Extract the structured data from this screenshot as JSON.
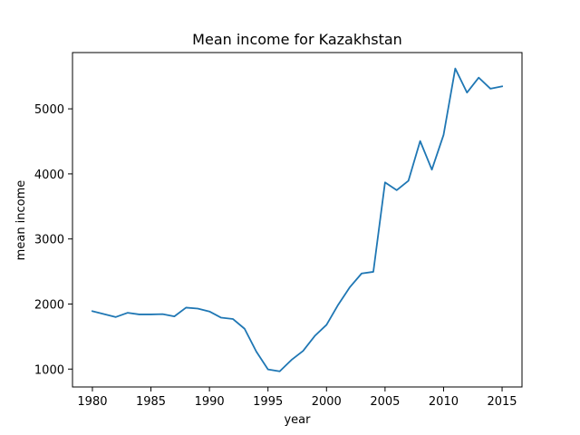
{
  "chart_data": {
    "type": "line",
    "title": "Mean income for Kazakhstan",
    "xlabel": "year",
    "ylabel": "mean income",
    "xlim": [
      1978.3,
      2016.7
    ],
    "ylim": [
      725,
      5865
    ],
    "x_ticks": [
      1980,
      1985,
      1990,
      1995,
      2000,
      2005,
      2010,
      2015
    ],
    "y_ticks": [
      1000,
      2000,
      3000,
      4000,
      5000
    ],
    "x_tick_labels": [
      "1980",
      "1985",
      "1990",
      "1995",
      "2000",
      "2005",
      "2010",
      "2015"
    ],
    "y_tick_labels": [
      "1000",
      "2000",
      "3000",
      "4000",
      "5000"
    ],
    "grid": false,
    "series": [
      {
        "color": "#1f77b4",
        "x": [
          1980,
          1981,
          1982,
          1983,
          1984,
          1985,
          1986,
          1987,
          1988,
          1989,
          1990,
          1991,
          1992,
          1993,
          1994,
          1995,
          1996,
          1997,
          1998,
          1999,
          2000,
          2001,
          2002,
          2003,
          2004,
          2005,
          2006,
          2007,
          2008,
          2009,
          2010,
          2011,
          2012,
          2013,
          2014,
          2015
        ],
        "y": [
          1890,
          1845,
          1800,
          1865,
          1840,
          1840,
          1845,
          1810,
          1945,
          1930,
          1885,
          1790,
          1770,
          1620,
          1270,
          995,
          965,
          1140,
          1280,
          1510,
          1680,
          1990,
          2260,
          2470,
          2495,
          3870,
          3750,
          3895,
          4505,
          4065,
          4600,
          5620,
          5250,
          5480,
          5310,
          5345
        ]
      }
    ]
  }
}
